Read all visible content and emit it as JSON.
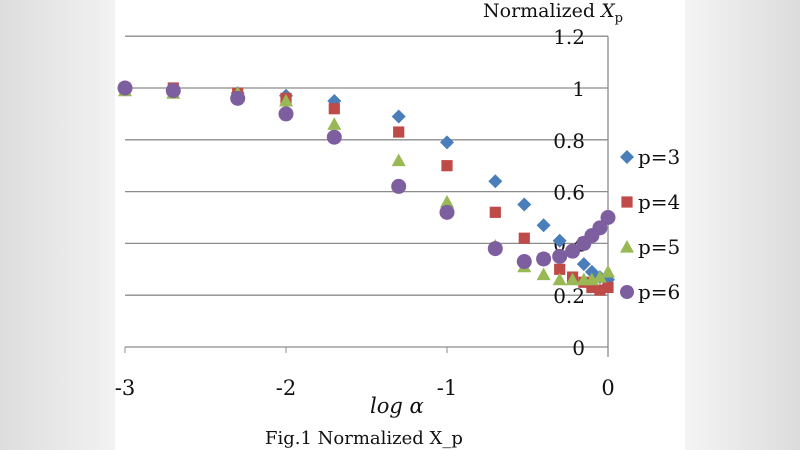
{
  "chart_data": {
    "type": "scatter",
    "title": "Normalized X_p",
    "caption": "Fig.1  Normalized X_p",
    "xlabel": "log α",
    "ylabel": "Normalized X_p",
    "xlim": [
      -3,
      0
    ],
    "ylim": [
      0,
      1.2
    ],
    "xticks": [
      "-3",
      "-2",
      "-1",
      "0"
    ],
    "yticks": [
      "0",
      "0.2",
      "0.4",
      "0.6",
      "0.8",
      "1",
      "1.2"
    ],
    "grid": true,
    "legend_position": "right",
    "x": [
      -3,
      -2.7,
      -2.3,
      -2,
      -1.7,
      -1.3,
      -1,
      -0.7,
      -0.52,
      -0.4,
      -0.3,
      -0.22,
      -0.15,
      -0.1,
      -0.05,
      0
    ],
    "series": [
      {
        "name": "p=3",
        "marker": "diamond",
        "color": "#4a7ebb",
        "values": [
          1.0,
          0.99,
          0.98,
          0.97,
          0.95,
          0.89,
          0.79,
          0.64,
          0.55,
          0.47,
          0.41,
          0.37,
          0.32,
          0.29,
          0.27,
          0.26
        ]
      },
      {
        "name": "p=4",
        "marker": "square",
        "color": "#be4b48",
        "values": [
          1.0,
          1.0,
          0.98,
          0.96,
          0.92,
          0.83,
          0.7,
          0.52,
          0.42,
          0.34,
          0.3,
          0.27,
          0.25,
          0.23,
          0.22,
          0.23
        ]
      },
      {
        "name": "p=5",
        "marker": "triangle",
        "color": "#98b954",
        "values": [
          0.99,
          0.98,
          0.98,
          0.95,
          0.86,
          0.72,
          0.56,
          0.39,
          0.31,
          0.28,
          0.26,
          0.26,
          0.26,
          0.26,
          0.27,
          0.29
        ]
      },
      {
        "name": "p=6",
        "marker": "circle",
        "color": "#7d5fa0",
        "values": [
          1.0,
          0.99,
          0.96,
          0.9,
          0.81,
          0.62,
          0.52,
          0.38,
          0.33,
          0.34,
          0.35,
          0.37,
          0.4,
          0.43,
          0.46,
          0.5
        ]
      }
    ]
  }
}
